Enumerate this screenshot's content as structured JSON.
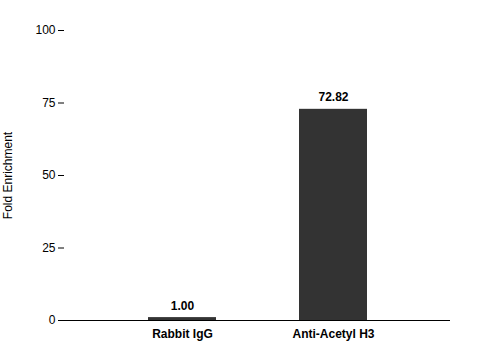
{
  "chart_data": {
    "type": "bar",
    "categories": [
      "Rabbit IgG",
      "Anti-Acetyl H3"
    ],
    "values": [
      1.0,
      72.82
    ],
    "value_labels": [
      "1.00",
      "72.82"
    ],
    "data_labels": true,
    "color": "#333333",
    "ylabel": "Fold Enrichment",
    "ylim": [
      0,
      100
    ],
    "yticks": [
      0,
      25,
      50,
      75,
      100
    ],
    "grid": false
  }
}
